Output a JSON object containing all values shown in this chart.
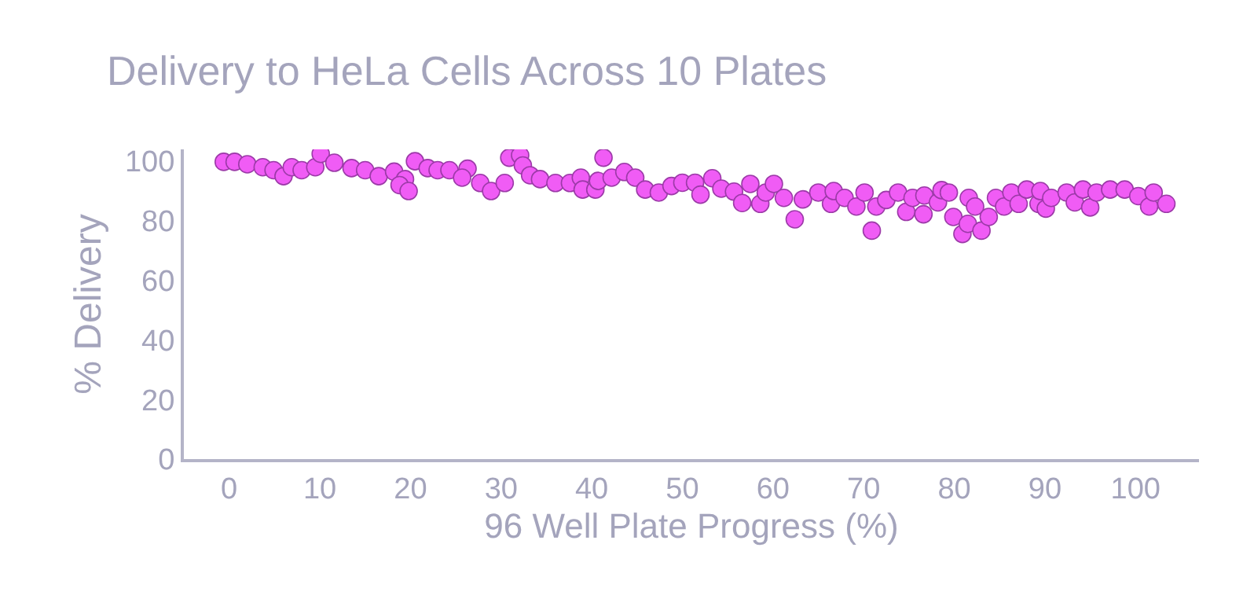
{
  "chart_data": {
    "type": "scatter",
    "title": "Delivery to HeLa Cells Across 10 Plates",
    "xlabel": "96 Well Plate Progress (%)",
    "ylabel": "% Delivery",
    "xlim": [
      -5,
      107
    ],
    "xticks": [
      0,
      10,
      20,
      30,
      40,
      50,
      60,
      70,
      80,
      90,
      100
    ],
    "ylim": [
      0,
      104
    ],
    "yticks": [
      0,
      20,
      40,
      60,
      80,
      100
    ],
    "marker": "circle",
    "series": [
      {
        "color": "#f05cf5",
        "x": [
          -0.6,
          0.6,
          2,
          3.7,
          4.9,
          6,
          6.9,
          8,
          9.5,
          10.1,
          11.6,
          13.5,
          15,
          16.5,
          18.2,
          19.4,
          18.8,
          19.8,
          20.5,
          21.9,
          23,
          24.3,
          26.3,
          25.7,
          27.7,
          28.9,
          30.4,
          30.9,
          32.1,
          32.4,
          33.2,
          34.3,
          36,
          37.6,
          38.8,
          39,
          40.4,
          40.7,
          41.3,
          42.2,
          43.6,
          44.8,
          45.9,
          47.4,
          48.8,
          50,
          51.4,
          52,
          53.3,
          54.3,
          55.7,
          56.6,
          57.5,
          58.6,
          59.2,
          60.1,
          61.2,
          62.4,
          63.3,
          65,
          66.4,
          66.7,
          67.9,
          69.2,
          70.1,
          70.9,
          71.4,
          72.5,
          73.8,
          74.7,
          75.4,
          76.6,
          76.7,
          78.2,
          78.6,
          79.4,
          79.9,
          80.9,
          81.5,
          81.6,
          82.3,
          83,
          83.8,
          84.6,
          85.5,
          86.3,
          87.1,
          88,
          89.3,
          89.5,
          90.1,
          90.7,
          92.4,
          93.3,
          94.2,
          95,
          95.7,
          97.2,
          98.8,
          100.3,
          101.5,
          102,
          103.4
        ],
        "values": [
          99.8,
          99.8,
          99,
          98,
          97,
          95,
          98,
          97,
          98,
          102.5,
          99.5,
          97.7,
          97,
          95,
          96.5,
          94,
          92,
          90,
          100,
          97.7,
          97,
          97,
          97.5,
          94.5,
          92.7,
          90,
          92.7,
          101.2,
          102,
          98.6,
          95.3,
          94,
          92.7,
          92.7,
          94.5,
          90.5,
          90.5,
          93.4,
          101.2,
          94.5,
          96.4,
          94.5,
          90.5,
          89.5,
          91.7,
          92.8,
          92.8,
          88.8,
          94.3,
          90.8,
          89.8,
          86,
          92.4,
          85.7,
          89.5,
          92.4,
          87.7,
          80.5,
          87.2,
          89.5,
          85.7,
          90,
          87.7,
          84.8,
          89.5,
          76.7,
          84.8,
          87,
          89.5,
          83,
          87.7,
          82.2,
          88.5,
          86.2,
          90.3,
          89.5,
          81.3,
          75.6,
          79,
          87.7,
          84.8,
          76.7,
          81.3,
          87.7,
          84.8,
          89.5,
          85.7,
          90.5,
          85.7,
          90,
          84.1,
          87.7,
          89.5,
          86.2,
          90.5,
          84.5,
          89.5,
          90.5,
          90.5,
          88.3,
          84.8,
          89.5,
          85.7
        ]
      }
    ]
  }
}
